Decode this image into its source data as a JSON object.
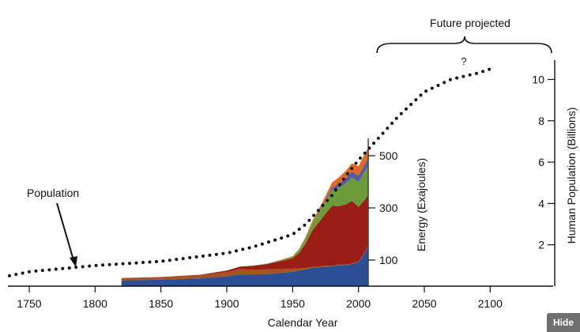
{
  "ui": {
    "hide_button": "Hide"
  },
  "chart_data": {
    "type": "area",
    "title": "",
    "xlabel": "Calendar Year",
    "xlim": [
      1735,
      2150
    ],
    "xticks": [
      1750,
      1800,
      1850,
      1900,
      1950,
      2000,
      2050,
      2100
    ],
    "energy_axis": {
      "label": "Energy (Exajoules)",
      "ticks": [
        100,
        300,
        500
      ],
      "ylim": [
        0,
        550
      ]
    },
    "population_axis": {
      "label": "Human Population (Billions)",
      "ticks": [
        2,
        4,
        6,
        8,
        10
      ],
      "ylim": [
        0,
        11
      ]
    },
    "annotations": {
      "population": "Population",
      "future": "Future projected",
      "question": "?"
    },
    "colors": {
      "blue": "#2a4f94",
      "red": "#9b1e16",
      "green": "#6e9b3a",
      "purple": "#5a5aa0",
      "orange": "#e06a22",
      "brown": "#a55320"
    },
    "energy_x": [
      1820,
      1850,
      1880,
      1900,
      1910,
      1920,
      1930,
      1940,
      1950,
      1955,
      1960,
      1965,
      1970,
      1975,
      1980,
      1985,
      1990,
      1995,
      2000,
      2005,
      2007
    ],
    "energy_series": [
      {
        "color": "blue",
        "values": [
          22,
          25,
          30,
          38,
          45,
          45,
          46,
          50,
          55,
          60,
          65,
          70,
          72,
          75,
          76,
          80,
          80,
          85,
          92,
          130,
          150
        ]
      },
      {
        "color": "brown",
        "values": [
          9,
          10,
          12,
          16,
          20,
          18,
          18,
          15,
          12,
          8,
          5,
          4,
          3,
          3,
          2,
          2,
          2,
          2,
          2,
          2,
          2
        ]
      },
      {
        "color": "red",
        "values": [
          0,
          0,
          2,
          6,
          10,
          15,
          20,
          30,
          40,
          60,
          95,
          140,
          170,
          200,
          230,
          225,
          230,
          240,
          210,
          200,
          195
        ]
      },
      {
        "color": "green",
        "values": [
          0,
          0,
          0,
          0,
          0,
          1,
          2,
          3,
          6,
          12,
          20,
          28,
          38,
          48,
          60,
          70,
          80,
          90,
          95,
          110,
          110
        ]
      },
      {
        "color": "purple",
        "values": [
          0,
          0,
          0,
          0,
          0,
          0,
          0,
          0,
          0,
          0,
          0,
          0,
          2,
          5,
          10,
          15,
          20,
          22,
          25,
          28,
          28
        ]
      },
      {
        "color": "orange",
        "values": [
          0,
          0,
          0,
          0,
          0,
          0,
          0,
          1,
          2,
          3,
          5,
          8,
          12,
          15,
          20,
          25,
          28,
          32,
          36,
          40,
          42
        ]
      }
    ],
    "population": {
      "x": [
        1735,
        1750,
        1800,
        1850,
        1900,
        1920,
        1930,
        1940,
        1950,
        1960,
        1970,
        1980,
        1990,
        2000,
        2010,
        2030,
        2050,
        2070,
        2090,
        2100
      ],
      "y": [
        0.5,
        0.7,
        1.0,
        1.2,
        1.6,
        1.9,
        2.1,
        2.3,
        2.5,
        3.0,
        3.7,
        4.4,
        5.3,
        6.1,
        6.8,
        8.2,
        9.4,
        10.0,
        10.3,
        10.5
      ]
    }
  }
}
